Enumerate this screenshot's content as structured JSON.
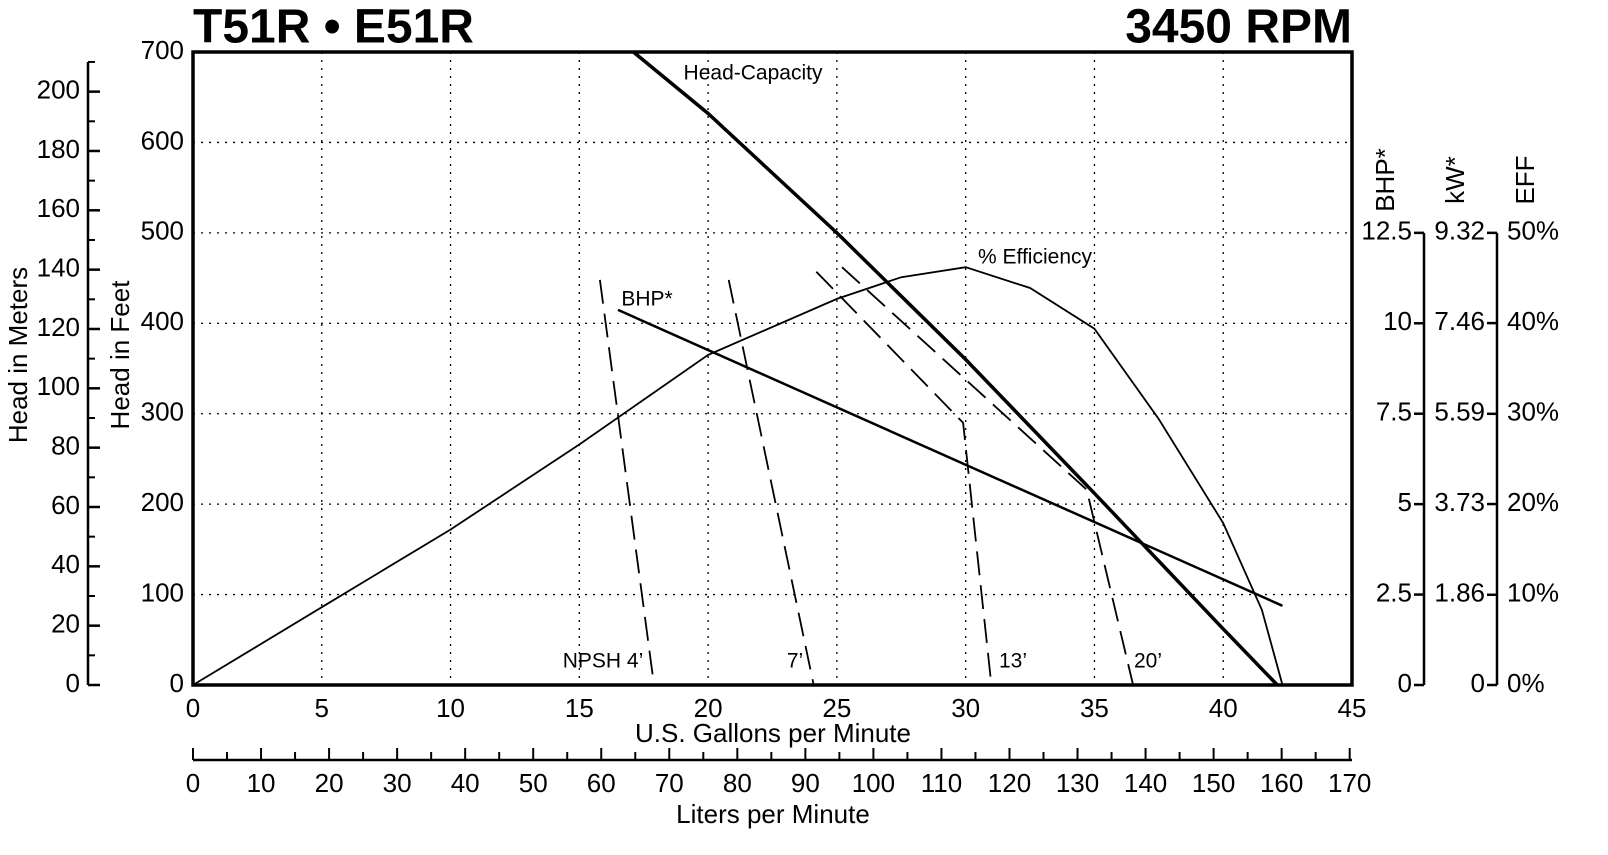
{
  "chart_data": {
    "type": "line",
    "title": "T51R • E51R",
    "subtitle": "3450 RPM",
    "xlabel": "U.S. Gallons per Minute",
    "xlim": [
      0,
      45
    ],
    "xticks": [
      0,
      5,
      10,
      15,
      20,
      25,
      30,
      35,
      40,
      45
    ],
    "ylabel": "Head in Feet",
    "ylim": [
      0,
      700
    ],
    "yticks": [
      0,
      100,
      200,
      300,
      400,
      500,
      600,
      700
    ],
    "grid": true,
    "meters_axis": {
      "label": "Head in Meters",
      "lim": [
        0,
        213.36
      ],
      "ticks": [
        0,
        20,
        40,
        60,
        80,
        100,
        120,
        140,
        160,
        180,
        200
      ],
      "minor_ticks": [
        10,
        30,
        50,
        70,
        90,
        110,
        130,
        150,
        170,
        190,
        210
      ]
    },
    "lpm_axis": {
      "label": "Liters per Minute",
      "lim": [
        0,
        170.34
      ],
      "ticks": [
        0,
        10,
        20,
        30,
        40,
        50,
        60,
        70,
        80,
        90,
        100,
        110,
        120,
        130,
        140,
        150,
        160,
        170
      ],
      "minor_ticks": [
        5,
        15,
        25,
        35,
        45,
        55,
        65,
        75,
        85,
        95,
        105,
        115,
        125,
        135,
        145,
        155,
        165
      ]
    },
    "y2label": "BHP*",
    "y2lim": [
      0,
      17.5
    ],
    "y2ticks": [
      0,
      2.5,
      5,
      7.5,
      10,
      12.5
    ],
    "y3label": "kW*",
    "y3lim": [
      0,
      13.048
    ],
    "y3ticks": [
      0,
      1.86,
      3.73,
      5.59,
      7.46,
      9.32
    ],
    "y4label": "EFF",
    "y4lim": [
      0,
      70
    ],
    "y4ticks": [
      {
        "value": 0,
        "label": "0%"
      },
      {
        "value": 10,
        "label": "10%"
      },
      {
        "value": 20,
        "label": "20%"
      },
      {
        "value": 30,
        "label": "30%"
      },
      {
        "value": 40,
        "label": "40%"
      },
      {
        "value": 50,
        "label": "50%"
      }
    ],
    "series": [
      {
        "name": "Head-Capacity",
        "color": "#000000",
        "width": 3.5,
        "dashed": false,
        "x": [
          17.1,
          20,
          25,
          30,
          35,
          40,
          42.1
        ],
        "values": [
          700,
          632,
          500,
          360,
          212,
          62,
          0
        ]
      },
      {
        "name": "% Efficiency",
        "color": "#000000",
        "width": 1.8,
        "dashed": false,
        "axis": "y4",
        "x": [
          0,
          5,
          10,
          15,
          20,
          25,
          27.5,
          30,
          32.5,
          35,
          37.5,
          40,
          41.5,
          42.3
        ],
        "values": [
          0,
          8.6,
          17.2,
          26.6,
          36.5,
          42.7,
          45.1,
          46.2,
          43.9,
          39.4,
          29.4,
          17.9,
          8.3,
          0
        ]
      },
      {
        "name": "BHP*",
        "color": "#000000",
        "width": 2.5,
        "dashed": false,
        "axis": "y2",
        "x": [
          16.5,
          42.3
        ],
        "values": [
          10.37,
          2.19
        ]
      },
      {
        "name": "NPSH 4’",
        "color": "#000000",
        "width": 1.8,
        "dashed": true,
        "x": [
          15.8,
          17.9
        ],
        "values": [
          448,
          0
        ]
      },
      {
        "name": "7’",
        "color": "#000000",
        "width": 1.8,
        "dashed": true,
        "x": [
          20.8,
          24.1
        ],
        "values": [
          448,
          0
        ]
      },
      {
        "name": "13’",
        "color": "#000000",
        "width": 1.8,
        "dashed": true,
        "x": [
          24.2,
          29.9,
          31.0
        ],
        "values": [
          457,
          290,
          0
        ]
      },
      {
        "name": "20’",
        "color": "#000000",
        "width": 1.8,
        "dashed": true,
        "x": [
          25.2,
          34.7,
          36.5
        ],
        "values": [
          462,
          216,
          0
        ]
      }
    ]
  }
}
